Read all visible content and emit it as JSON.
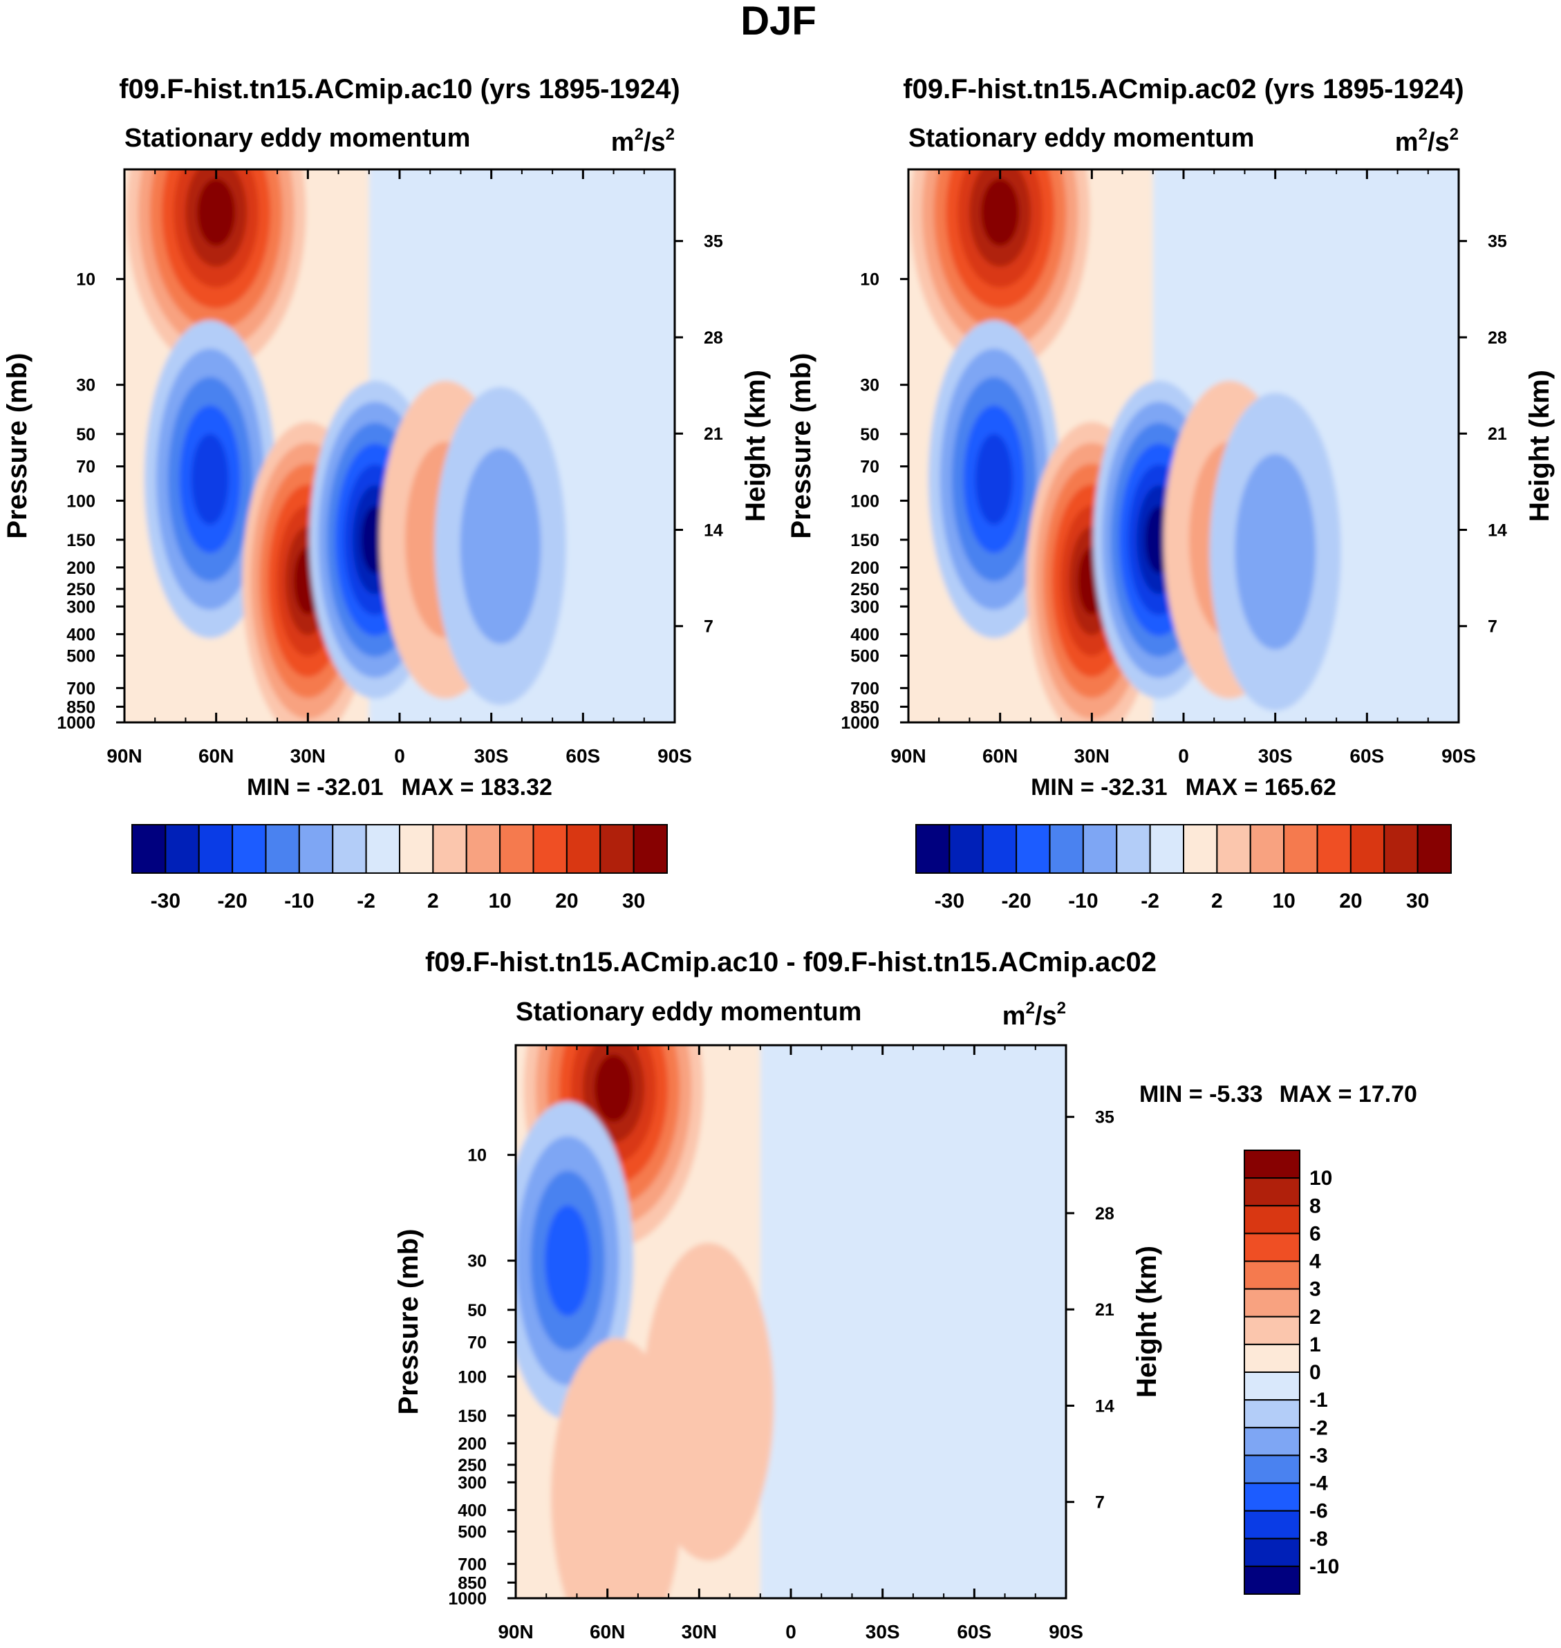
{
  "figure": {
    "title": "DJF"
  },
  "chart_data": [
    {
      "type": "contour",
      "title": "f09.F-hist.tn15.ACmip.ac10 (yrs 1895-1924)",
      "subtitle": "Stationary eddy momentum",
      "units_base": "m",
      "units_exp1": "2",
      "units_mid": "/s",
      "units_exp2": "2",
      "xlabel": "",
      "ylabel": "Pressure (mb)",
      "y2label": "Height (km)",
      "x_ticks": [
        "90N",
        "60N",
        "30N",
        "0",
        "30S",
        "60S",
        "90S"
      ],
      "x_values": [
        90,
        60,
        30,
        0,
        -30,
        -60,
        -90
      ],
      "y_ticks": [
        10,
        30,
        50,
        70,
        100,
        150,
        200,
        250,
        300,
        400,
        500,
        700,
        850,
        1000
      ],
      "y2_ticks": [
        35,
        28,
        21,
        14,
        7
      ],
      "ylim": [
        3.2,
        1000
      ],
      "min_label": "MIN = -32.01",
      "max_label": "MAX = 183.32",
      "min": -32.01,
      "max": 183.32,
      "features": [
        {
          "type": "max",
          "lat": 60,
          "pressure": 5,
          "value": 183.32
        },
        {
          "type": "min",
          "lat": 62,
          "pressure": 80,
          "value": -20
        },
        {
          "type": "max",
          "lat": 30,
          "pressure": 230,
          "value": 30
        },
        {
          "type": "min",
          "lat": 8,
          "pressure": 150,
          "value": -32.01
        },
        {
          "type": "max",
          "lat": -15,
          "pressure": 150,
          "value": 5
        },
        {
          "type": "min",
          "lat": -33,
          "pressure": 160,
          "value": -6
        }
      ],
      "colorbar": {
        "orientation": "horizontal",
        "levels": [
          -30,
          -25,
          -20,
          -15,
          -10,
          -5,
          -2,
          0,
          2,
          5,
          10,
          15,
          20,
          25,
          30
        ],
        "tick_labels": [
          "-30",
          "-20",
          "-10",
          "-2",
          "2",
          "10",
          "20",
          "30"
        ],
        "colors": [
          "#00007f",
          "#0020b8",
          "#0a3ce6",
          "#1c5cff",
          "#4a82f0",
          "#7ea6f4",
          "#b3cdf8",
          "#d9e8fb",
          "#fde9d8",
          "#fbc6ad",
          "#f8a280",
          "#f57a4e",
          "#ef4f24",
          "#d93712",
          "#b0200b",
          "#870101"
        ]
      }
    },
    {
      "type": "contour",
      "title": "f09.F-hist.tn15.ACmip.ac02 (yrs 1895-1924)",
      "subtitle": "Stationary eddy momentum",
      "units_base": "m",
      "units_exp1": "2",
      "units_mid": "/s",
      "units_exp2": "2",
      "xlabel": "",
      "ylabel": "Pressure (mb)",
      "y2label": "Height (km)",
      "x_ticks": [
        "90N",
        "60N",
        "30N",
        "0",
        "30S",
        "60S",
        "90S"
      ],
      "x_values": [
        90,
        60,
        30,
        0,
        -30,
        -60,
        -90
      ],
      "y_ticks": [
        10,
        30,
        50,
        70,
        100,
        150,
        200,
        250,
        300,
        400,
        500,
        700,
        850,
        1000
      ],
      "y2_ticks": [
        35,
        28,
        21,
        14,
        7
      ],
      "ylim": [
        3.2,
        1000
      ],
      "min_label": "MIN = -32.31",
      "max_label": "MAX = 165.62",
      "min": -32.31,
      "max": 165.62,
      "features": [
        {
          "type": "max",
          "lat": 60,
          "pressure": 5,
          "value": 165.62
        },
        {
          "type": "min",
          "lat": 62,
          "pressure": 80,
          "value": -20
        },
        {
          "type": "max",
          "lat": 30,
          "pressure": 230,
          "value": 30
        },
        {
          "type": "min",
          "lat": 8,
          "pressure": 150,
          "value": -32.31
        },
        {
          "type": "max",
          "lat": -15,
          "pressure": 150,
          "value": 5
        },
        {
          "type": "min",
          "lat": -30,
          "pressure": 170,
          "value": -5
        }
      ],
      "colorbar": {
        "orientation": "horizontal",
        "levels": [
          -30,
          -25,
          -20,
          -15,
          -10,
          -5,
          -2,
          0,
          2,
          5,
          10,
          15,
          20,
          25,
          30
        ],
        "tick_labels": [
          "-30",
          "-20",
          "-10",
          "-2",
          "2",
          "10",
          "20",
          "30"
        ],
        "colors": [
          "#00007f",
          "#0020b8",
          "#0a3ce6",
          "#1c5cff",
          "#4a82f0",
          "#7ea6f4",
          "#b3cdf8",
          "#d9e8fb",
          "#fde9d8",
          "#fbc6ad",
          "#f8a280",
          "#f57a4e",
          "#ef4f24",
          "#d93712",
          "#b0200b",
          "#870101"
        ]
      }
    },
    {
      "type": "contour",
      "title": "f09.F-hist.tn15.ACmip.ac10 - f09.F-hist.tn15.ACmip.ac02",
      "subtitle": "Stationary eddy momentum",
      "units_base": "m",
      "units_exp1": "2",
      "units_mid": "/s",
      "units_exp2": "2",
      "xlabel": "",
      "ylabel": "Pressure (mb)",
      "y2label": "Height (km)",
      "x_ticks": [
        "90N",
        "60N",
        "30N",
        "0",
        "30S",
        "60S",
        "90S"
      ],
      "x_values": [
        90,
        60,
        30,
        0,
        -30,
        -60,
        -90
      ],
      "y_ticks": [
        10,
        30,
        50,
        70,
        100,
        150,
        200,
        250,
        300,
        400,
        500,
        700,
        850,
        1000
      ],
      "y2_ticks": [
        35,
        28,
        21,
        14,
        7
      ],
      "ylim": [
        3.2,
        1000
      ],
      "min_label": "MIN =  -5.33",
      "max_label": "MAX =  17.70",
      "min": -5.33,
      "max": 17.7,
      "features": [
        {
          "type": "max",
          "lat": 58,
          "pressure": 5,
          "value": 17.7
        },
        {
          "type": "min",
          "lat": 73,
          "pressure": 30,
          "value": -5.33
        },
        {
          "type": "max",
          "lat": 57,
          "pressure": 350,
          "value": 1.5
        },
        {
          "type": "max",
          "lat": 27,
          "pressure": 130,
          "value": 1.5
        }
      ],
      "colorbar": {
        "orientation": "vertical",
        "levels": [
          10,
          8,
          6,
          4,
          3,
          2,
          1,
          0,
          -1,
          -2,
          -3,
          -4,
          -6,
          -8,
          -10
        ],
        "tick_labels": [
          "10",
          "8",
          "6",
          "4",
          "3",
          "2",
          "1",
          "0",
          "-1",
          "-2",
          "-3",
          "-4",
          "-6",
          "-8",
          "-10"
        ],
        "colors": [
          "#870101",
          "#b0200b",
          "#d93712",
          "#ef4f24",
          "#f57a4e",
          "#f8a280",
          "#fbc6ad",
          "#fde9d8",
          "#d9e8fb",
          "#b3cdf8",
          "#7ea6f4",
          "#4a82f0",
          "#1c5cff",
          "#0a3ce6",
          "#0020b8",
          "#00007f"
        ]
      }
    }
  ]
}
